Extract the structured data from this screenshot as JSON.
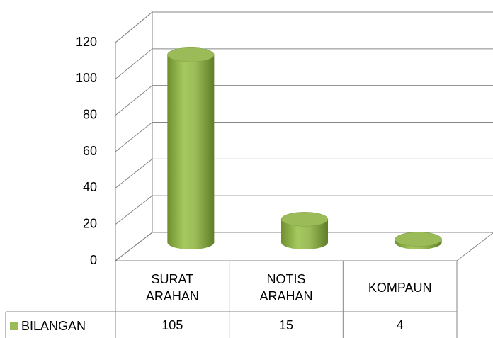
{
  "chart_data": {
    "type": "bar3d",
    "categories": [
      "SURAT ARAHAN",
      "NOTIS ARAHAN",
      "KOMPAUN"
    ],
    "series": [
      {
        "name": "BILANGAN",
        "color": "#9bbb59",
        "values": [
          105,
          15,
          4
        ]
      }
    ],
    "ylim": [
      0,
      120
    ],
    "yticks": [
      0,
      20,
      40,
      60,
      80,
      100,
      120
    ],
    "grid": true,
    "data_table": true
  }
}
